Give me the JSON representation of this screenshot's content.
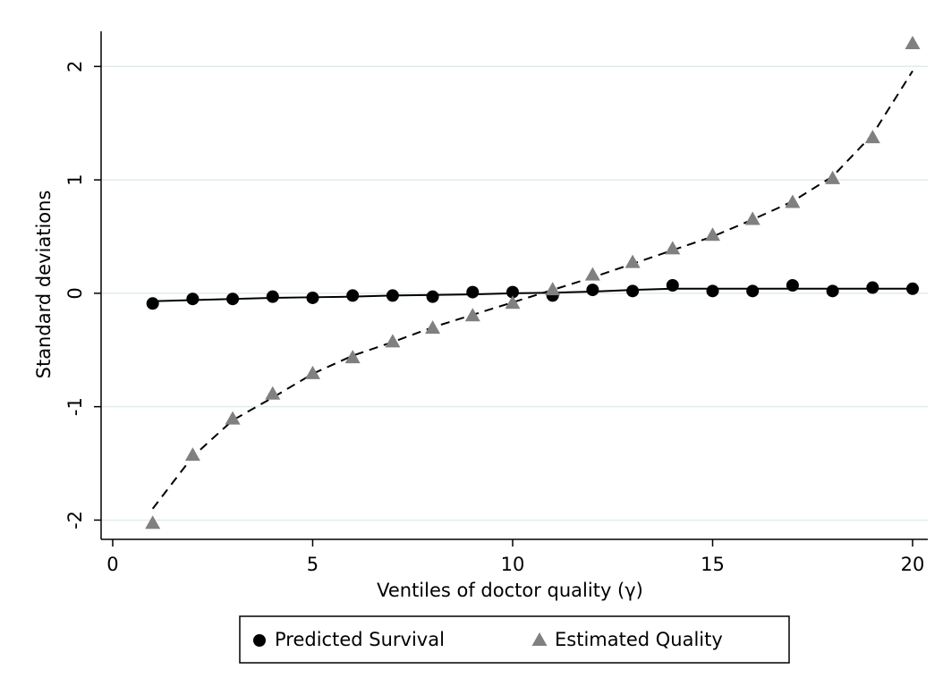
{
  "chart_data": {
    "type": "scatter",
    "x_label": "Ventiles of doctor quality (γ)",
    "y_label": "Standard deviations",
    "x": [
      1,
      2,
      3,
      4,
      5,
      6,
      7,
      8,
      9,
      10,
      11,
      12,
      13,
      14,
      15,
      16,
      17,
      18,
      19,
      20
    ],
    "series": [
      {
        "name": "Predicted Survival",
        "color": "#000000",
        "marker": "circle",
        "fit_dash": false,
        "values": [
          -0.09,
          -0.05,
          -0.05,
          -0.03,
          -0.04,
          -0.02,
          -0.02,
          -0.03,
          0.01,
          0.01,
          -0.02,
          0.03,
          0.02,
          0.07,
          0.02,
          0.02,
          0.07,
          0.02,
          0.05,
          0.04
        ],
        "fit_values": [
          -0.07,
          -0.06,
          -0.05,
          -0.04,
          -0.035,
          -0.03,
          -0.02,
          -0.015,
          -0.01,
          0,
          0.005,
          0.015,
          0.03,
          0.04,
          0.04,
          0.04,
          0.04,
          0.04,
          0.04,
          0.04
        ]
      },
      {
        "name": "Estimated Quality",
        "color": "#808080",
        "marker": "triangle",
        "fit_dash": true,
        "values": [
          -2.03,
          -1.43,
          -1.11,
          -0.89,
          -0.71,
          -0.57,
          -0.43,
          -0.31,
          -0.2,
          -0.09,
          0.03,
          0.16,
          0.27,
          0.39,
          0.51,
          0.65,
          0.8,
          1.01,
          1.37,
          2.2
        ],
        "fit_values": [
          -1.9,
          -1.44,
          -1.12,
          -0.92,
          -0.71,
          -0.55,
          -0.43,
          -0.3,
          -0.19,
          -0.08,
          0.03,
          0.14,
          0.26,
          0.38,
          0.5,
          0.65,
          0.81,
          1.03,
          1.4,
          1.96
        ]
      }
    ],
    "xlim": [
      -0.29,
      20.38
    ],
    "xticks": [
      0,
      5,
      10,
      15,
      20
    ],
    "ylim": [
      -2.17,
      2.31
    ],
    "yticks": [
      -2,
      -1,
      0,
      1,
      2
    ],
    "grid": true,
    "legend": "bottom"
  }
}
